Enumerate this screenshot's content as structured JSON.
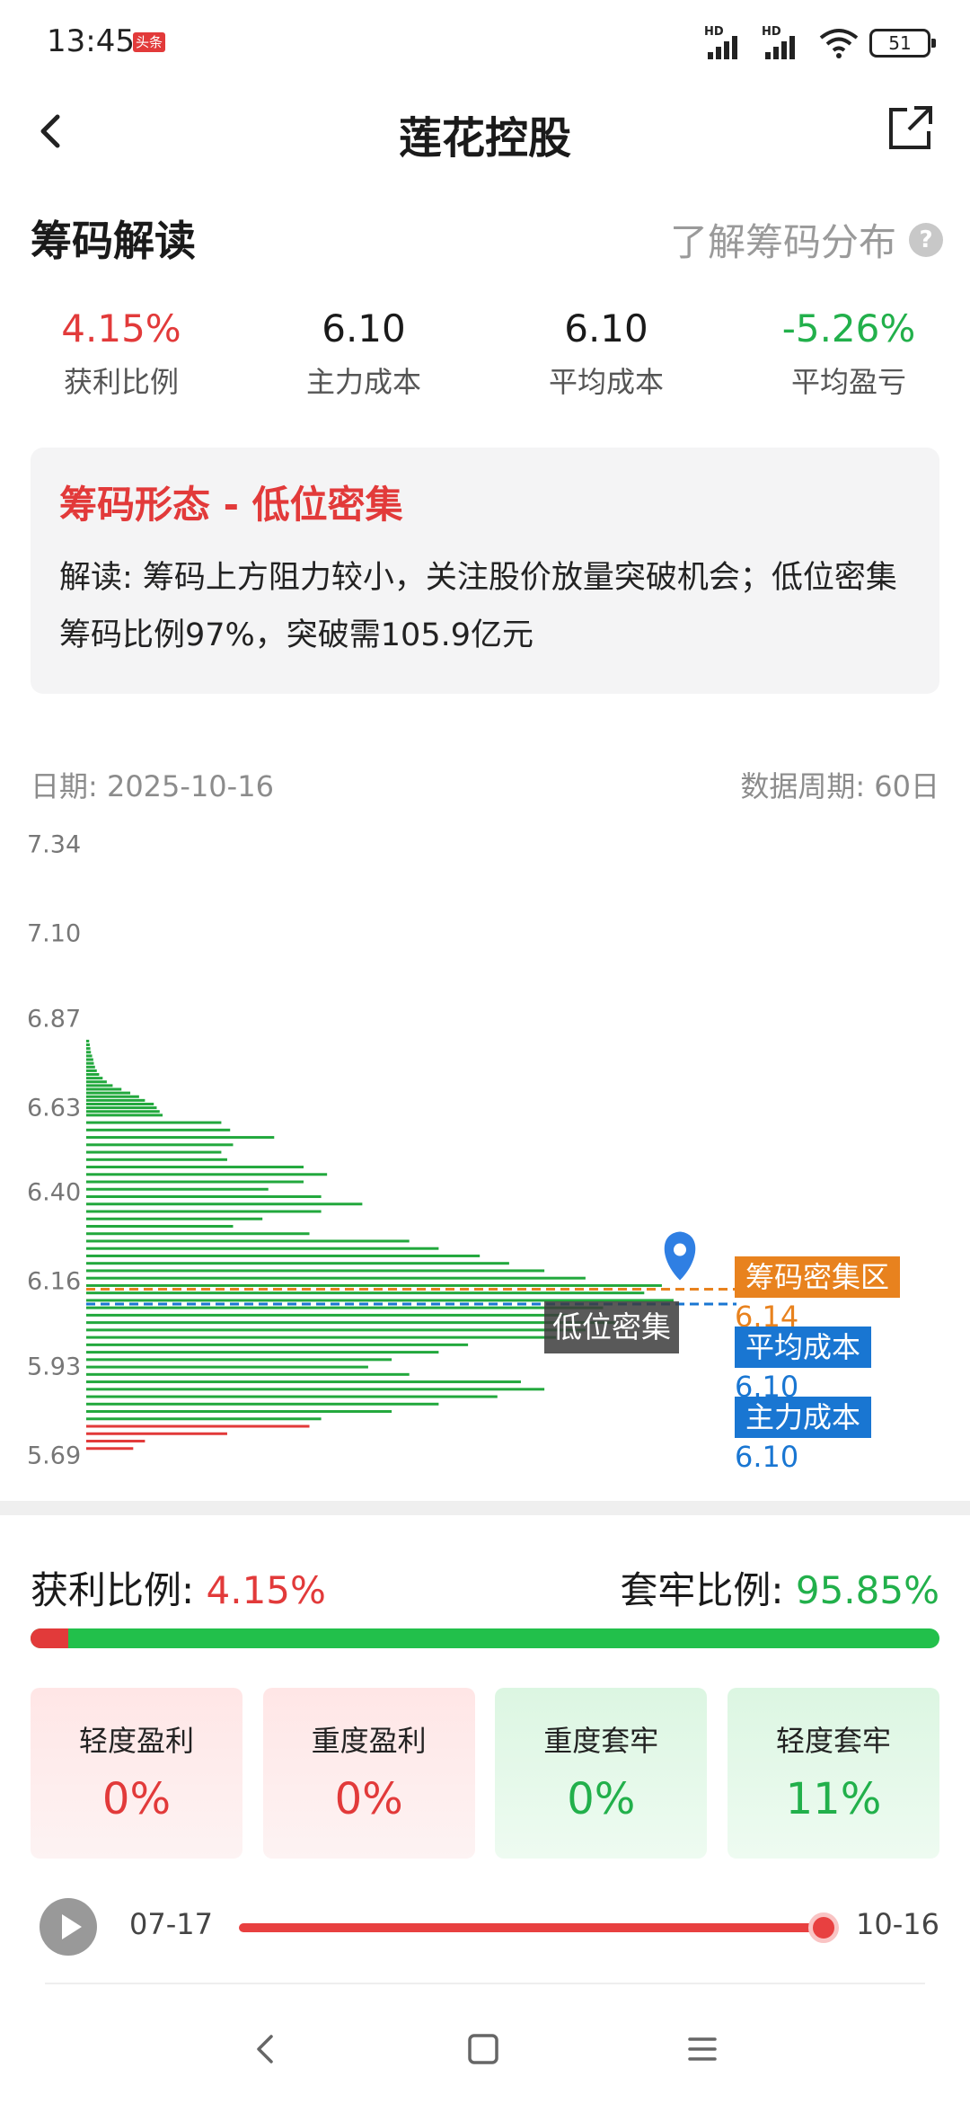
{
  "status": {
    "time": "13:45",
    "app_badge": "头条",
    "battery": "51",
    "signal_label": "HD"
  },
  "header": {
    "title": "莲花控股"
  },
  "section": {
    "title": "筹码解读",
    "learn_link": "了解筹码分布",
    "help": "?"
  },
  "stats": [
    {
      "value": "4.15%",
      "label": "获利比例",
      "color": "red"
    },
    {
      "value": "6.10",
      "label": "主力成本",
      "color": "normal"
    },
    {
      "value": "6.10",
      "label": "平均成本",
      "color": "normal"
    },
    {
      "value": "-5.26%",
      "label": "平均盈亏",
      "color": "green"
    }
  ],
  "card": {
    "title": "筹码形态 - 低位密集",
    "desc": "解读: 筹码上方阻力较小，关注股价放量突破机会；低位密集筹码比例97%，突破需105.9亿元"
  },
  "chart_meta": {
    "date": "日期: 2025-10-16",
    "period": "数据周期: 60日"
  },
  "chart_data": {
    "type": "bar",
    "orientation": "horizontal",
    "y_ticks": [
      "7.34",
      "7.10",
      "6.87",
      "6.63",
      "6.40",
      "6.16",
      "5.93",
      "5.69"
    ],
    "ylim": [
      5.69,
      7.34
    ],
    "current_price": 5.78,
    "colors": {
      "profit": "#e23a3a",
      "trapped": "#22a83d"
    },
    "price_levels": [
      6.81,
      6.8,
      6.79,
      6.78,
      6.77,
      6.76,
      6.75,
      6.74,
      6.73,
      6.72,
      6.71,
      6.7,
      6.69,
      6.68,
      6.67,
      6.66,
      6.65,
      6.64,
      6.63,
      6.62,
      6.61,
      6.59,
      6.57,
      6.55,
      6.53,
      6.51,
      6.49,
      6.47,
      6.45,
      6.43,
      6.41,
      6.39,
      6.37,
      6.35,
      6.33,
      6.31,
      6.29,
      6.27,
      6.25,
      6.23,
      6.21,
      6.19,
      6.17,
      6.15,
      6.13,
      6.11,
      6.09,
      6.07,
      6.05,
      6.03,
      6.01,
      5.99,
      5.97,
      5.95,
      5.93,
      5.91,
      5.89,
      5.87,
      5.85,
      5.83,
      5.81,
      5.79,
      5.77,
      5.75,
      5.73,
      5.71
    ],
    "chip_volumes": [
      0.5,
      0.6,
      0.7,
      0.8,
      1.0,
      1.2,
      1.3,
      1.5,
      1.8,
      2.2,
      2.8,
      3.5,
      4.5,
      6.0,
      7.5,
      9.0,
      10.0,
      11.5,
      12.0,
      12.5,
      13.0,
      23.0,
      24.5,
      32.0,
      25.0,
      23.0,
      24.0,
      37.0,
      41.0,
      37.0,
      31.0,
      40.0,
      47.0,
      40.0,
      30.0,
      25.0,
      38.0,
      55.0,
      60.0,
      67.0,
      72.0,
      78.0,
      85.0,
      98.0,
      95.0,
      100.0,
      88.0,
      82.0,
      90.0,
      85.0,
      80.0,
      65.0,
      60.0,
      52.0,
      48.0,
      55.0,
      74.0,
      78.0,
      70.0,
      60.0,
      52.0,
      40.0,
      38.0,
      24.0,
      10.0,
      8.0
    ],
    "annotations": {
      "dense_zone": {
        "label": "筹码密集区",
        "value": "6.14",
        "price": 6.14,
        "color": "#e8821e"
      },
      "avg_cost": {
        "label": "平均成本",
        "value": "6.10",
        "price": 6.1,
        "color": "#1976d2"
      },
      "main_cost": {
        "label": "主力成本",
        "value": "6.10",
        "price": 6.1,
        "color": "#1976d2"
      },
      "dense_pattern_label": "低位密集"
    }
  },
  "ratio": {
    "profit_label": "获利比例: ",
    "profit_value": "4.15%",
    "trapped_label": "套牢比例: ",
    "trapped_value": "95.85%",
    "profit_fraction": 0.0415
  },
  "boxes": [
    {
      "label": "轻度盈利",
      "value": "0%",
      "tone": "profit"
    },
    {
      "label": "重度盈利",
      "value": "0%",
      "tone": "profit"
    },
    {
      "label": "重度套牢",
      "value": "0%",
      "tone": "trapped"
    },
    {
      "label": "轻度套牢",
      "value": "11%",
      "tone": "trapped"
    }
  ],
  "slider": {
    "start": "07-17",
    "end": "10-16",
    "position": 1.0
  }
}
